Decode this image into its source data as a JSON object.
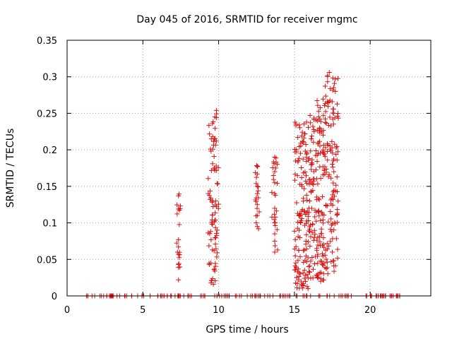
{
  "chart_data": {
    "type": "scatter",
    "title": "Day 045 of 2016, SRMTID for receiver mgmc",
    "xlabel": "GPS time / hours",
    "ylabel": "SRMTID / TECUs",
    "xlim": [
      0,
      24
    ],
    "ylim": [
      0,
      0.35
    ],
    "xticks": [
      0,
      5,
      10,
      15,
      20
    ],
    "xtick_labels": [
      "0",
      "5",
      "10",
      "15",
      "20"
    ],
    "yticks": [
      0,
      0.05,
      0.1,
      0.15,
      0.2,
      0.25,
      0.3,
      0.35
    ],
    "ytick_labels": [
      "0",
      "0.05",
      "0.1",
      "0.15",
      "0.2",
      "0.25",
      "0.3",
      "0.35"
    ],
    "grid": true,
    "marker": "+",
    "color": "#dd1111",
    "clusters": [
      {
        "x": [
          7.2,
          7.5
        ],
        "y": [
          0.02,
          0.14
        ],
        "n": 14
      },
      {
        "x": [
          9.3,
          10.0
        ],
        "y": [
          0.02,
          0.25
        ],
        "n": 70
      },
      {
        "x": [
          12.4,
          12.7
        ],
        "y": [
          0.09,
          0.18
        ],
        "n": 16
      },
      {
        "x": [
          13.5,
          13.9
        ],
        "y": [
          0.06,
          0.19
        ],
        "n": 22
      },
      {
        "x": [
          15.0,
          16.0
        ],
        "y": [
          0.01,
          0.24
        ],
        "n": 140
      },
      {
        "x": [
          16.0,
          17.0
        ],
        "y": [
          0.02,
          0.27
        ],
        "n": 150
      },
      {
        "x": [
          17.0,
          17.9
        ],
        "y": [
          0.03,
          0.31
        ],
        "n": 120
      }
    ],
    "series": [
      {
        "name": "SRMTID",
        "points": [
          [
            7.35,
            0.137
          ],
          [
            7.35,
            0.119
          ],
          [
            7.35,
            0.077
          ],
          [
            7.35,
            0.067
          ],
          [
            7.35,
            0.057
          ],
          [
            7.35,
            0.043
          ],
          [
            7.35,
            0.039
          ],
          [
            7.35,
            0.022
          ],
          [
            9.6,
            0.098
          ],
          [
            9.8,
            0.08
          ],
          [
            9.7,
            0.036
          ],
          [
            9.5,
            0.018
          ],
          [
            9.9,
            0.09
          ],
          [
            9.65,
            0.016
          ],
          [
            9.75,
            0.034
          ],
          [
            9.85,
            0.254
          ],
          [
            9.85,
            0.244
          ],
          [
            9.85,
            0.212
          ],
          [
            9.6,
            0.181
          ],
          [
            9.55,
            0.101
          ],
          [
            9.8,
            0.13
          ],
          [
            9.9,
            0.154
          ],
          [
            9.7,
            0.191
          ],
          [
            9.9,
            0.059
          ],
          [
            9.75,
            0.245
          ],
          [
            12.55,
            0.177
          ],
          [
            12.55,
            0.167
          ],
          [
            12.55,
            0.15
          ],
          [
            12.55,
            0.14
          ],
          [
            12.55,
            0.125
          ],
          [
            12.55,
            0.11
          ],
          [
            12.55,
            0.095
          ],
          [
            13.7,
            0.19
          ],
          [
            13.7,
            0.17
          ],
          [
            13.7,
            0.155
          ],
          [
            13.7,
            0.14
          ],
          [
            13.7,
            0.12
          ],
          [
            13.7,
            0.1
          ],
          [
            13.7,
            0.085
          ],
          [
            13.7,
            0.075
          ],
          [
            13.7,
            0.06
          ],
          [
            17.3,
            0.306
          ],
          [
            17.55,
            0.256
          ],
          [
            17.6,
            0.25
          ],
          [
            16.6,
            0.245
          ],
          [
            15.9,
            0.01
          ],
          [
            16.55,
            0.03
          ],
          [
            17.5,
            0.06
          ],
          [
            15.1,
            0.233
          ],
          [
            15.05,
            0.197
          ],
          [
            15.25,
            0.037
          ],
          [
            15.8,
            0.238
          ],
          [
            16.3,
            0.225
          ],
          [
            17.7,
            0.28
          ]
        ]
      }
    ],
    "zero_band": {
      "y": 0,
      "description": "many near-zero samples along the x-axis"
    }
  }
}
